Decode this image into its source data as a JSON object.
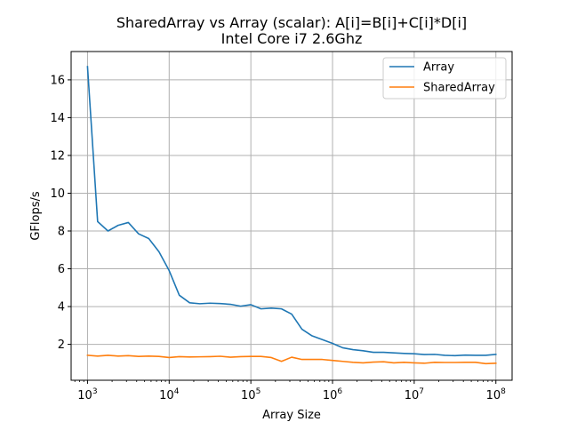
{
  "chart_data": {
    "type": "line",
    "title": "SharedArray vs Array (scalar): A[i]=B[i]+C[i]*D[i]",
    "subtitle": "Intel Core i7 2.6Ghz",
    "xlabel": "Array Size",
    "ylabel": "GFlops/s",
    "xscale": "log",
    "xlim": [
      630,
      158000000
    ],
    "ylim": [
      0.1,
      17.5
    ],
    "x_ticks": [
      {
        "value": 1000,
        "base": "10",
        "exp": "3"
      },
      {
        "value": 10000,
        "base": "10",
        "exp": "4"
      },
      {
        "value": 100000,
        "base": "10",
        "exp": "5"
      },
      {
        "value": 1000000,
        "base": "10",
        "exp": "6"
      },
      {
        "value": 10000000,
        "base": "10",
        "exp": "7"
      },
      {
        "value": 100000000,
        "base": "10",
        "exp": "8"
      }
    ],
    "y_ticks": [
      2,
      4,
      6,
      8,
      10,
      12,
      14,
      16
    ],
    "grid": true,
    "legend_position": "top-right",
    "x": [
      1000,
      1330,
      1780,
      2370,
      3160,
      4220,
      5620,
      7500,
      10000,
      13300,
      17800,
      23700,
      31600,
      42200,
      56200,
      75000,
      100000,
      133000,
      178000,
      237000,
      316000,
      422000,
      562000,
      750000,
      1000000,
      1330000,
      1780000,
      2370000,
      3160000,
      4220000,
      5620000,
      7500000,
      10000000,
      13300000,
      17800000,
      23700000,
      31600000,
      42200000,
      56200000,
      75000000,
      100000000
    ],
    "series": [
      {
        "name": "Array",
        "color": "#1f77b4",
        "values": [
          16.7,
          8.5,
          8.0,
          8.3,
          8.45,
          7.85,
          7.6,
          6.9,
          5.9,
          4.6,
          4.2,
          4.15,
          4.18,
          4.16,
          4.12,
          4.02,
          4.1,
          3.88,
          3.92,
          3.88,
          3.6,
          2.8,
          2.45,
          2.25,
          2.05,
          1.82,
          1.72,
          1.66,
          1.58,
          1.58,
          1.55,
          1.52,
          1.5,
          1.46,
          1.47,
          1.42,
          1.4,
          1.43,
          1.42,
          1.42,
          1.47
        ]
      },
      {
        "name": "SharedArray",
        "color": "#ff7f0e",
        "values": [
          1.42,
          1.38,
          1.42,
          1.38,
          1.4,
          1.36,
          1.38,
          1.36,
          1.3,
          1.35,
          1.33,
          1.34,
          1.35,
          1.37,
          1.32,
          1.35,
          1.36,
          1.36,
          1.3,
          1.1,
          1.32,
          1.2,
          1.2,
          1.2,
          1.15,
          1.1,
          1.05,
          1.02,
          1.06,
          1.08,
          1.02,
          1.05,
          1.02,
          1.0,
          1.05,
          1.04,
          1.04,
          1.05,
          1.05,
          0.98,
          1.0
        ]
      }
    ]
  }
}
